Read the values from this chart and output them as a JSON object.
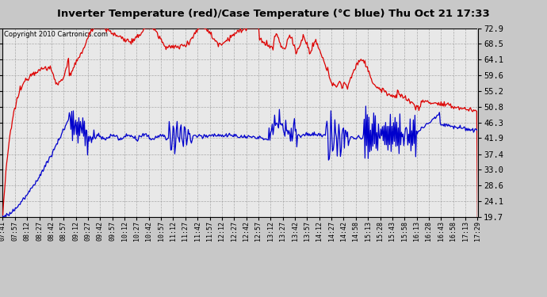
{
  "title": "Inverter Temperature (red)/Case Temperature (°C blue) Thu Oct 21 17:33",
  "copyright": "Copyright 2010 Cartronics.com",
  "yticks": [
    19.7,
    24.1,
    28.6,
    33.0,
    37.4,
    41.9,
    46.3,
    50.8,
    55.2,
    59.6,
    64.1,
    68.5,
    72.9
  ],
  "xtick_labels": [
    "07:41",
    "07:57",
    "08:12",
    "08:27",
    "08:42",
    "08:57",
    "09:12",
    "09:27",
    "09:42",
    "09:57",
    "10:12",
    "10:27",
    "10:42",
    "10:57",
    "11:12",
    "11:27",
    "11:42",
    "11:57",
    "12:12",
    "12:27",
    "12:42",
    "12:57",
    "13:12",
    "13:27",
    "13:42",
    "13:57",
    "14:12",
    "14:27",
    "14:42",
    "14:58",
    "15:13",
    "15:28",
    "15:43",
    "15:58",
    "16:13",
    "16:28",
    "16:43",
    "16:58",
    "17:13",
    "17:29"
  ],
  "ymin": 19.7,
  "ymax": 72.9,
  "fig_bg": "#c8c8c8",
  "plot_bg": "#e8e8e8",
  "title_bg": "#b0b0b0",
  "red_color": "#dd0000",
  "blue_color": "#0000cc",
  "grid_color": "#999999"
}
